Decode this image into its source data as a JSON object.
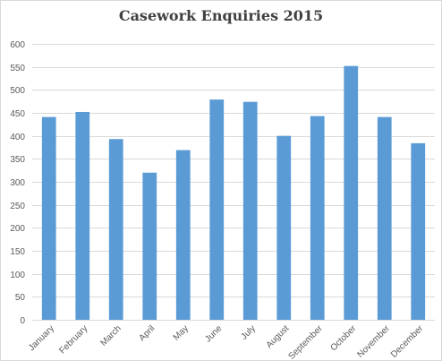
{
  "chart_data": {
    "type": "bar",
    "title": "Casework Enquiries 2015",
    "xlabel": "",
    "ylabel": "",
    "categories": [
      "January",
      "February",
      "March",
      "April",
      "May",
      "June",
      "July",
      "August",
      "September",
      "October",
      "November",
      "December"
    ],
    "values": [
      441,
      452,
      393,
      320,
      369,
      479,
      474,
      400,
      443,
      552,
      441,
      384
    ],
    "ylim": [
      0,
      600
    ],
    "yticks": [
      "0",
      "50",
      "100",
      "150",
      "200",
      "250",
      "300",
      "350",
      "400",
      "450",
      "500",
      "550",
      "600"
    ],
    "grid": true,
    "legend": "none",
    "bar_color": "#5b9bd5",
    "grid_color": "#d9d9d9"
  }
}
